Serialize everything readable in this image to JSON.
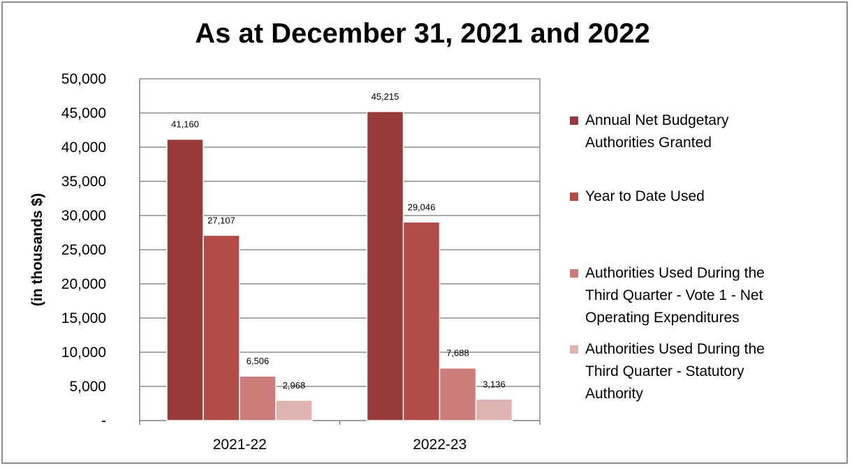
{
  "chart_data": {
    "type": "bar",
    "title": "As at December 31, 2021 and 2022",
    "ylabel": "(in thousands $)",
    "xlabel": "",
    "categories": [
      "2021-22",
      "2022-23"
    ],
    "ylim": [
      0,
      50000
    ],
    "yticks": [
      0,
      5000,
      10000,
      15000,
      20000,
      25000,
      30000,
      35000,
      40000,
      45000,
      50000
    ],
    "ytick_labels": [
      "-",
      "5,000",
      "10,000",
      "15,000",
      "20,000",
      "25,000",
      "30,000",
      "35,000",
      "40,000",
      "45,000",
      "50,000"
    ],
    "grid": true,
    "legend_position": "right",
    "series": [
      {
        "name": "Annual Net Budgetary\nAuthorities Granted",
        "values": [
          41160,
          45215
        ],
        "labels": [
          "41,160",
          "45,215"
        ],
        "color": "#963a3a"
      },
      {
        "name": "Year to Date Used",
        "values": [
          27107,
          29046
        ],
        "labels": [
          "27,107",
          "29,046"
        ],
        "color": "#b34b48"
      },
      {
        "name": "Authorities Used During the\nThird Quarter - Vote 1 - Net\nOperating Expenditures",
        "values": [
          6506,
          7688
        ],
        "labels": [
          "6,506",
          "7,688"
        ],
        "color": "#cc7c7b"
      },
      {
        "name": "Authorities Used During the\nThird Quarter  - Statutory\nAuthority",
        "values": [
          2968,
          3136
        ],
        "labels": [
          "2,968",
          "3,136"
        ],
        "color": "#deb3b2"
      }
    ]
  }
}
